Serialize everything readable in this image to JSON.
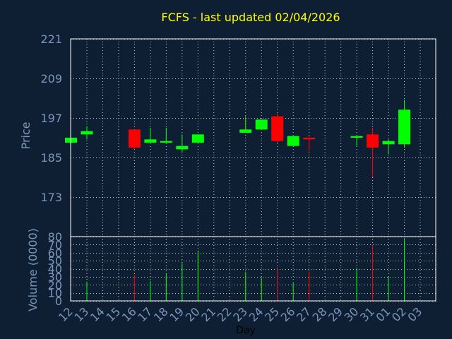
{
  "chart_data": {
    "type": "candlestick",
    "title": "FCFS - last updated 02/04/2026",
    "xlabel": "Day",
    "price_panel": {
      "ylabel": "Price",
      "ylim": [
        161,
        221
      ],
      "yticks": [
        221,
        209,
        197,
        185,
        173
      ],
      "grid": true
    },
    "volume_panel": {
      "ylabel": "Volume (0000)",
      "ylim": [
        0,
        80
      ],
      "yticks": [
        80,
        70,
        60,
        50,
        40,
        30,
        20,
        10,
        0
      ],
      "grid": true
    },
    "categories": [
      "12",
      "13",
      "14",
      "15",
      "16",
      "17",
      "18",
      "19",
      "20",
      "21",
      "22",
      "23",
      "24",
      "25",
      "26",
      "27",
      "28",
      "29",
      "30",
      "31",
      "01",
      "02",
      "03"
    ],
    "candles": [
      {
        "day": "12",
        "open": 189.5,
        "high": 191.0,
        "low": 189.0,
        "close": 191.0
      },
      {
        "day": "13",
        "open": 192.0,
        "high": 194.5,
        "low": 190.5,
        "close": 193.0
      },
      {
        "day": "16",
        "open": 193.5,
        "high": 193.5,
        "low": 187.5,
        "close": 188.0
      },
      {
        "day": "17",
        "open": 189.5,
        "high": 194.0,
        "low": 189.5,
        "close": 190.5
      },
      {
        "day": "18",
        "open": 189.5,
        "high": 194.0,
        "low": 189.5,
        "close": 190.0
      },
      {
        "day": "19",
        "open": 187.5,
        "high": 192.0,
        "low": 186.5,
        "close": 188.5
      },
      {
        "day": "20",
        "open": 189.5,
        "high": 192.0,
        "low": 189.5,
        "close": 192.0
      },
      {
        "day": "23",
        "open": 192.5,
        "high": 197.5,
        "low": 192.5,
        "close": 193.5
      },
      {
        "day": "24",
        "open": 193.5,
        "high": 196.5,
        "low": 193.5,
        "close": 196.5
      },
      {
        "day": "25",
        "open": 197.5,
        "high": 198.5,
        "low": 189.5,
        "close": 190.0
      },
      {
        "day": "26",
        "open": 188.5,
        "high": 191.5,
        "low": 188.5,
        "close": 191.5
      },
      {
        "day": "27",
        "open": 191.0,
        "high": 191.5,
        "low": 187.0,
        "close": 190.5
      },
      {
        "day": "30",
        "open": 191.0,
        "high": 191.5,
        "low": 188.5,
        "close": 191.5
      },
      {
        "day": "31",
        "open": 192.0,
        "high": 194.0,
        "low": 179.0,
        "close": 188.0
      },
      {
        "day": "01",
        "open": 189.0,
        "high": 190.5,
        "low": 186.0,
        "close": 190.0
      },
      {
        "day": "02",
        "open": 189.0,
        "high": 202.5,
        "low": 188.0,
        "close": 199.5
      }
    ],
    "volume": [
      {
        "day": "12",
        "value": 0,
        "color": "green"
      },
      {
        "day": "13",
        "value": 24,
        "color": "green"
      },
      {
        "day": "16",
        "value": 32,
        "color": "red"
      },
      {
        "day": "17",
        "value": 25,
        "color": "green"
      },
      {
        "day": "18",
        "value": 34,
        "color": "green"
      },
      {
        "day": "19",
        "value": 47,
        "color": "green"
      },
      {
        "day": "20",
        "value": 62,
        "color": "green"
      },
      {
        "day": "23",
        "value": 36,
        "color": "green"
      },
      {
        "day": "24",
        "value": 29,
        "color": "green"
      },
      {
        "day": "25",
        "value": 40,
        "color": "red"
      },
      {
        "day": "26",
        "value": 22,
        "color": "green"
      },
      {
        "day": "27",
        "value": 36,
        "color": "red"
      },
      {
        "day": "30",
        "value": 40,
        "color": "green"
      },
      {
        "day": "31",
        "value": 70,
        "color": "red"
      },
      {
        "day": "01",
        "value": 30,
        "color": "green"
      },
      {
        "day": "02",
        "value": 78,
        "color": "green"
      }
    ],
    "colors": {
      "background": "#0f1f33",
      "title": "#ffff00",
      "axis_text": "#7a96b8",
      "xlabel": "#000000",
      "grid": "#c8c8c8",
      "axis": "#ffffff",
      "up": "#00ff00",
      "down": "#ff0000"
    }
  }
}
